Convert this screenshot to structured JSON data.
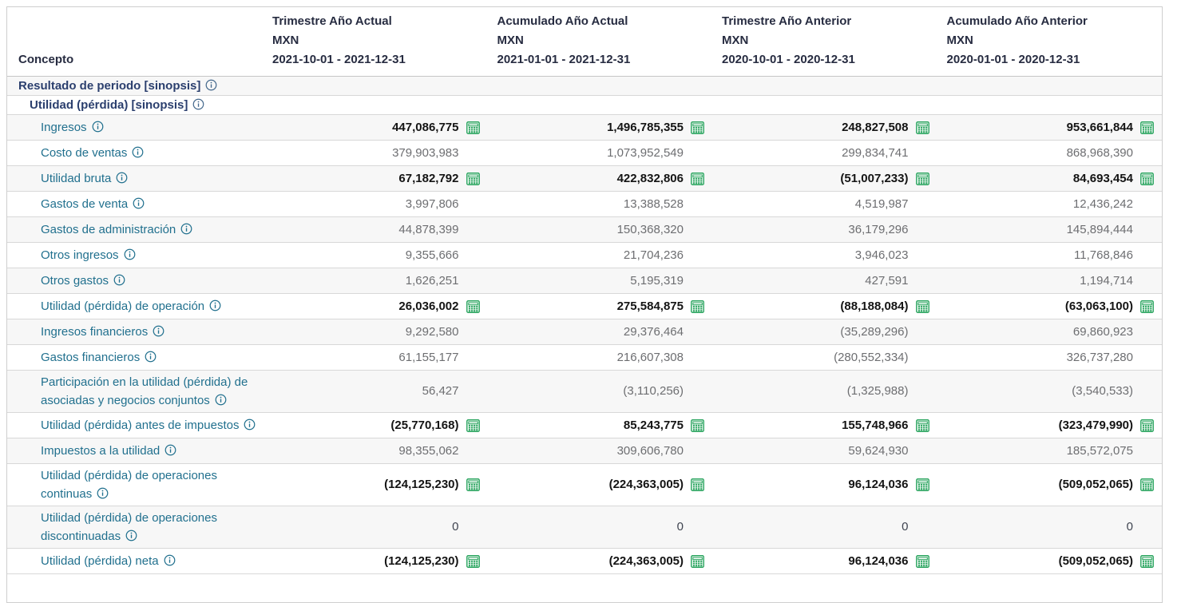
{
  "table": {
    "concept_header": "Concepto",
    "columns": [
      {
        "title": "Trimestre Año Actual",
        "currency": "MXN",
        "period": "2021-10-01 - 2021-12-31"
      },
      {
        "title": "Acumulado Año Actual",
        "currency": "MXN",
        "period": "2021-01-01 - 2021-12-31"
      },
      {
        "title": "Trimestre Año Anterior",
        "currency": "MXN",
        "period": "2020-10-01 - 2020-12-31"
      },
      {
        "title": "Acumulado Año Anterior",
        "currency": "MXN",
        "period": "2020-01-01 - 2020-12-31"
      }
    ],
    "rows": [
      {
        "label": "Resultado de periodo [sinopsis]",
        "type": "section",
        "level": 1,
        "has_info": true,
        "values": []
      },
      {
        "label": "Utilidad (pérdida) [sinopsis]",
        "type": "section",
        "level": 2,
        "has_info": true,
        "values": []
      },
      {
        "label": "Ingresos",
        "type": "total",
        "has_info": true,
        "values": [
          "447,086,775",
          "1,496,785,355",
          "248,827,508",
          "953,661,844"
        ]
      },
      {
        "label": "Costo de ventas",
        "type": "normal",
        "has_info": true,
        "values": [
          "379,903,983",
          "1,073,952,549",
          "299,834,741",
          "868,968,390"
        ]
      },
      {
        "label": "Utilidad bruta",
        "type": "total",
        "has_info": true,
        "values": [
          "67,182,792",
          "422,832,806",
          "(51,007,233)",
          "84,693,454"
        ]
      },
      {
        "label": "Gastos de venta",
        "type": "normal",
        "has_info": true,
        "values": [
          "3,997,806",
          "13,388,528",
          "4,519,987",
          "12,436,242"
        ]
      },
      {
        "label": "Gastos de administración",
        "type": "normal",
        "has_info": true,
        "values": [
          "44,878,399",
          "150,368,320",
          "36,179,296",
          "145,894,444"
        ]
      },
      {
        "label": "Otros ingresos",
        "type": "normal",
        "has_info": true,
        "values": [
          "9,355,666",
          "21,704,236",
          "3,946,023",
          "11,768,846"
        ]
      },
      {
        "label": "Otros gastos",
        "type": "normal",
        "has_info": true,
        "values": [
          "1,626,251",
          "5,195,319",
          "427,591",
          "1,194,714"
        ]
      },
      {
        "label": "Utilidad (pérdida) de operación",
        "type": "total",
        "has_info": true,
        "values": [
          "26,036,002",
          "275,584,875",
          "(88,188,084)",
          "(63,063,100)"
        ]
      },
      {
        "label": "Ingresos financieros",
        "type": "normal",
        "has_info": true,
        "values": [
          "9,292,580",
          "29,376,464",
          "(35,289,296)",
          "69,860,923"
        ]
      },
      {
        "label": "Gastos financieros",
        "type": "normal",
        "has_info": true,
        "values": [
          "61,155,177",
          "216,607,308",
          "(280,552,334)",
          "326,737,280"
        ]
      },
      {
        "label": "Participación en la utilidad (pérdida) de asociadas y negocios conjuntos",
        "type": "normal",
        "has_info": true,
        "values": [
          "56,427",
          "(3,110,256)",
          "(1,325,988)",
          "(3,540,533)"
        ]
      },
      {
        "label": "Utilidad (pérdida) antes de impuestos",
        "type": "total",
        "has_info": true,
        "values": [
          "(25,770,168)",
          "85,243,775",
          "155,748,966",
          "(323,479,990)"
        ]
      },
      {
        "label": "Impuestos a la utilidad",
        "type": "normal",
        "has_info": true,
        "values": [
          "98,355,062",
          "309,606,780",
          "59,624,930",
          "185,572,075"
        ]
      },
      {
        "label": "Utilidad (pérdida) de operaciones continuas",
        "type": "total",
        "has_info": true,
        "values": [
          "(124,125,230)",
          "(224,363,005)",
          "96,124,036",
          "(509,052,065)"
        ]
      },
      {
        "label": "Utilidad (pérdida) de operaciones discontinuadas",
        "type": "zero",
        "has_info": true,
        "values": [
          "0",
          "0",
          "0",
          "0"
        ]
      },
      {
        "label": "Utilidad (pérdida) neta",
        "type": "total",
        "has_info": true,
        "values": [
          "(124,125,230)",
          "(224,363,005)",
          "96,124,036",
          "(509,052,065)"
        ]
      }
    ],
    "icons": {
      "info": "info-icon",
      "calculator": "calculator-icon"
    },
    "colors": {
      "label_teal": "#21708e",
      "section_text": "#2b3f6e",
      "header_text": "#272c41",
      "value_gray": "#6d6e71",
      "value_bold": "#141414",
      "calculator_green": "#29a45e",
      "stripe_background": "#f7f7f7",
      "border": "#cfcfcf"
    }
  }
}
